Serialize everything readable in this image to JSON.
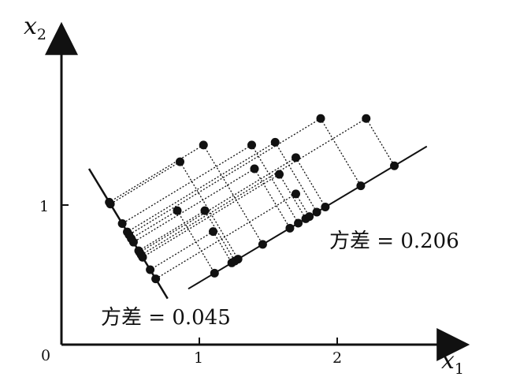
{
  "axes": {
    "x_label_main": "x",
    "x_label_sub": "1",
    "y_label_main": "x",
    "y_label_sub": "2",
    "x_ticks": [
      "1",
      "2"
    ],
    "y_ticks": [
      "1"
    ],
    "origin": "0"
  },
  "annotations": {
    "variance_large": "方差 = 0.206",
    "variance_small": "方差 = 0.045"
  },
  "points": [
    [
      0.86,
      1.31
    ],
    [
      1.03,
      1.43
    ],
    [
      1.38,
      1.43
    ],
    [
      1.55,
      1.45
    ],
    [
      1.88,
      1.62
    ],
    [
      2.21,
      1.62
    ],
    [
      1.7,
      1.34
    ],
    [
      1.4,
      1.26
    ],
    [
      1.58,
      1.22
    ],
    [
      1.7,
      1.08
    ],
    [
      0.84,
      0.96
    ],
    [
      1.04,
      0.96
    ],
    [
      1.1,
      0.81
    ]
  ],
  "colors": {
    "ink": "#111111",
    "background": "#ffffff"
  }
}
